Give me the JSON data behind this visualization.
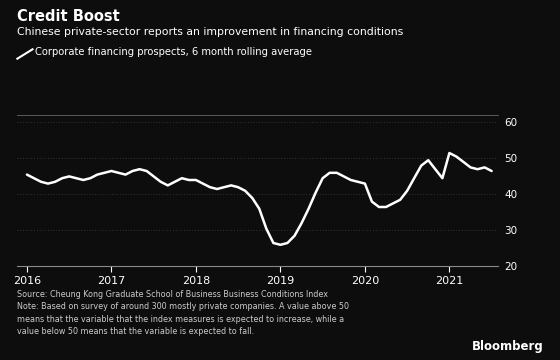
{
  "title": "Credit Boost",
  "subtitle": "Chinese private-sector reports an improvement in financing conditions",
  "legend_label": "Corporate financing prospects, 6 month rolling average",
  "source_note": "Source: Cheung Kong Graduate School of Business Business Conditions Index\nNote: Based on survey of around 300 mostly private companies. A value above 50\nmeans that the variable that the index measures is expected to increase, while a\nvalue below 50 means that the variable is expected to fall.",
  "bloomberg_label": "Bloomberg",
  "background_color": "#0d0d0d",
  "text_color": "#ffffff",
  "line_color": "#ffffff",
  "source_color": "#cccccc",
  "ylim": [
    20,
    62
  ],
  "yticks": [
    20,
    30,
    40,
    50,
    60
  ],
  "x_labels": [
    "2016",
    "2017",
    "2018",
    "2019",
    "2020",
    "2021"
  ],
  "x_values": [
    0.0,
    0.083,
    0.167,
    0.25,
    0.333,
    0.417,
    0.5,
    0.583,
    0.667,
    0.75,
    0.833,
    0.917,
    1.0,
    1.083,
    1.167,
    1.25,
    1.333,
    1.417,
    1.5,
    1.583,
    1.667,
    1.75,
    1.833,
    1.917,
    2.0,
    2.083,
    2.167,
    2.25,
    2.333,
    2.417,
    2.5,
    2.583,
    2.667,
    2.75,
    2.833,
    2.917,
    3.0,
    3.083,
    3.167,
    3.25,
    3.333,
    3.417,
    3.5,
    3.583,
    3.667,
    3.75,
    3.833,
    3.917,
    4.0,
    4.083,
    4.167,
    4.25,
    4.333,
    4.417,
    4.5,
    4.583,
    4.667,
    4.75,
    4.833,
    4.917,
    5.0,
    5.083,
    5.167,
    5.25,
    5.333,
    5.417,
    5.5
  ],
  "y_values": [
    45.5,
    44.5,
    43.5,
    43.0,
    43.5,
    44.5,
    45.0,
    44.5,
    44.0,
    44.5,
    45.5,
    46.0,
    46.5,
    46.0,
    45.5,
    46.5,
    47.0,
    46.5,
    45.0,
    43.5,
    42.5,
    43.5,
    44.5,
    44.0,
    44.0,
    43.0,
    42.0,
    41.5,
    42.0,
    42.5,
    42.0,
    41.0,
    39.0,
    36.0,
    30.5,
    26.5,
    26.0,
    26.5,
    28.5,
    32.0,
    36.0,
    40.5,
    44.5,
    46.0,
    46.0,
    45.0,
    44.0,
    43.5,
    43.0,
    38.0,
    36.5,
    36.5,
    37.5,
    38.5,
    41.0,
    44.5,
    48.0,
    49.5,
    47.0,
    44.5,
    51.5,
    50.5,
    49.0,
    47.5,
    47.0,
    47.5,
    46.5
  ]
}
